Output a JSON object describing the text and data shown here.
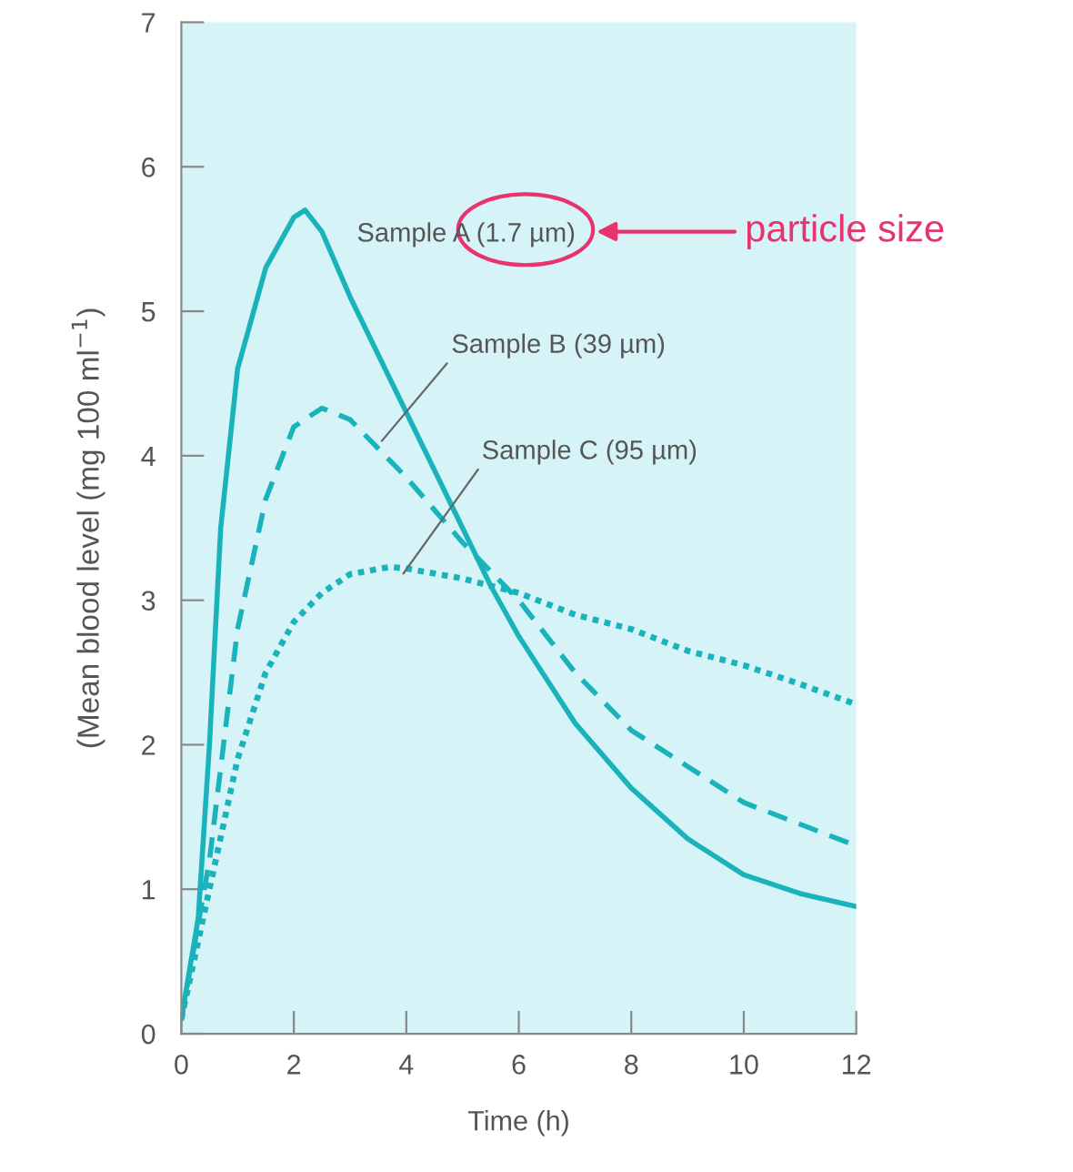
{
  "chart_data": {
    "type": "line",
    "xlabel": "Time (h)",
    "ylabel": "(Mean blood level (mg 100 ml$^{−1}$)",
    "xlim": [
      0,
      12
    ],
    "xticks": [
      0,
      2,
      4,
      6,
      8,
      10,
      12
    ],
    "ylim": [
      0,
      7
    ],
    "yticks": [
      0,
      1,
      2,
      3,
      4,
      5,
      6,
      7
    ],
    "grid": false,
    "legend": false,
    "marker": "none",
    "annotations": [
      "particle size"
    ],
    "series": [
      {
        "name": "Sample A (1.7 µm)",
        "color": "#1ab3bb",
        "line_style": "solid",
        "x": [
          0,
          0.3,
          0.5,
          0.7,
          1.0,
          1.5,
          2.0,
          2.2,
          2.5,
          3,
          4,
          5,
          5.5,
          6,
          7,
          8,
          9,
          10,
          11,
          12
        ],
        "values": [
          0.1,
          0.8,
          2.0,
          3.5,
          4.6,
          5.3,
          5.65,
          5.7,
          5.55,
          5.1,
          4.3,
          3.5,
          3.1,
          2.75,
          2.15,
          1.7,
          1.35,
          1.1,
          0.97,
          0.88
        ]
      },
      {
        "name": "Sample B (39 µm)",
        "color": "#1ab3bb",
        "line_style": "dashed",
        "x": [
          0,
          0.5,
          1,
          1.5,
          2,
          2.5,
          3,
          4,
          5,
          6,
          7,
          8,
          9,
          10,
          11,
          12
        ],
        "values": [
          0.1,
          1.2,
          2.8,
          3.7,
          4.2,
          4.33,
          4.25,
          3.85,
          3.4,
          3.0,
          2.5,
          2.1,
          1.85,
          1.6,
          1.45,
          1.3
        ]
      },
      {
        "name": "Sample C (95 µm)",
        "color": "#1ab3bb",
        "line_style": "dotted",
        "x": [
          0,
          0.5,
          1,
          1.5,
          2,
          2.5,
          3,
          3.7,
          4,
          5,
          6,
          7,
          8,
          9,
          10,
          11,
          12
        ],
        "values": [
          0.1,
          1.0,
          1.9,
          2.5,
          2.85,
          3.05,
          3.18,
          3.23,
          3.22,
          3.15,
          3.05,
          2.9,
          2.8,
          2.65,
          2.55,
          2.42,
          2.28
        ]
      }
    ]
  }
}
